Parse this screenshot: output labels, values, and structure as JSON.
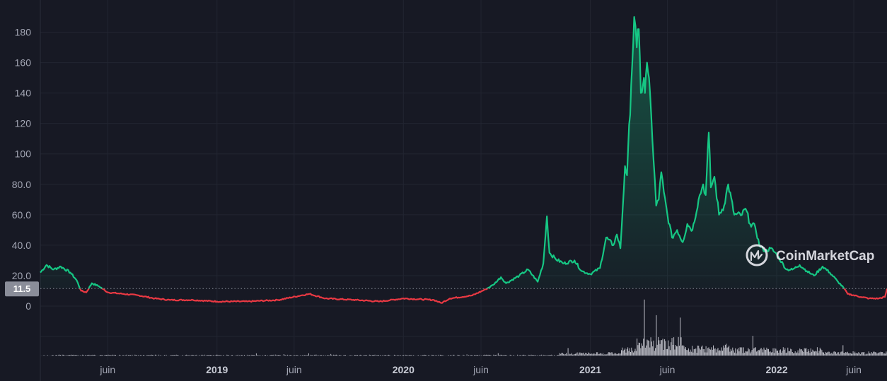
{
  "chart_data": {
    "type": "line",
    "title": "",
    "xlabel": "",
    "ylabel": "",
    "ylim": [
      0,
      190
    ],
    "y_ticks": [
      "180",
      "160",
      "140",
      "120",
      "100",
      "80.0",
      "60.0",
      "40.0",
      "20.0",
      "0"
    ],
    "x_ticks": [
      {
        "label": "juin",
        "date": "2018-06-01",
        "year_marker": false
      },
      {
        "label": "2019",
        "date": "2019-01-01",
        "year_marker": true
      },
      {
        "label": "juin",
        "date": "2019-06-01",
        "year_marker": false
      },
      {
        "label": "2020",
        "date": "2020-01-01",
        "year_marker": true
      },
      {
        "label": "juin",
        "date": "2020-06-01",
        "year_marker": false
      },
      {
        "label": "2021",
        "date": "2021-01-01",
        "year_marker": true
      },
      {
        "label": "juin",
        "date": "2021-06-01",
        "year_marker": false
      },
      {
        "label": "2022",
        "date": "2022-01-01",
        "year_marker": true
      },
      {
        "label": "juin",
        "date": "2022-06-01",
        "year_marker": false
      }
    ],
    "x_range": [
      "2018-01-20",
      "2022-08-05"
    ],
    "grid": true,
    "current_price": {
      "label": "11.5",
      "value": 11.5
    },
    "colors": {
      "up": "#16c784",
      "down": "#ea3943",
      "grid": "#222531",
      "background": "#171924",
      "volume": "#d9dbe3"
    },
    "series": [
      {
        "values": [
          [
            "2018-01-20",
            22
          ],
          [
            "2018-02-01",
            27
          ],
          [
            "2018-02-15",
            24
          ],
          [
            "2018-03-01",
            26
          ],
          [
            "2018-03-20",
            22
          ],
          [
            "2018-04-01",
            17
          ],
          [
            "2018-04-10",
            10
          ],
          [
            "2018-04-20",
            9
          ],
          [
            "2018-05-01",
            15
          ],
          [
            "2018-05-15",
            13
          ],
          [
            "2018-06-01",
            9
          ],
          [
            "2018-07-01",
            8
          ],
          [
            "2018-08-01",
            7
          ],
          [
            "2018-09-01",
            5
          ],
          [
            "2018-10-01",
            4
          ],
          [
            "2018-11-15",
            4
          ],
          [
            "2019-01-01",
            3
          ],
          [
            "2019-03-01",
            3
          ],
          [
            "2019-05-01",
            4
          ],
          [
            "2019-06-15",
            7
          ],
          [
            "2019-07-01",
            8
          ],
          [
            "2019-08-01",
            5
          ],
          [
            "2019-10-01",
            4
          ],
          [
            "2019-11-15",
            3
          ],
          [
            "2020-01-01",
            5
          ],
          [
            "2020-03-01",
            4
          ],
          [
            "2020-03-15",
            2
          ],
          [
            "2020-04-01",
            5
          ],
          [
            "2020-05-15",
            7
          ],
          [
            "2020-06-10",
            11
          ],
          [
            "2020-06-25",
            14
          ],
          [
            "2020-07-10",
            19
          ],
          [
            "2020-07-20",
            15
          ],
          [
            "2020-08-15",
            20
          ],
          [
            "2020-09-01",
            24
          ],
          [
            "2020-09-20",
            16
          ],
          [
            "2020-10-01",
            28
          ],
          [
            "2020-10-08",
            59
          ],
          [
            "2020-10-13",
            35
          ],
          [
            "2020-10-25",
            31
          ],
          [
            "2020-11-10",
            28
          ],
          [
            "2020-12-01",
            30
          ],
          [
            "2020-12-15",
            23
          ],
          [
            "2021-01-01",
            21
          ],
          [
            "2021-01-20",
            25
          ],
          [
            "2021-02-01",
            45
          ],
          [
            "2021-02-15",
            40
          ],
          [
            "2021-02-22",
            47
          ],
          [
            "2021-03-01",
            38
          ],
          [
            "2021-03-10",
            92
          ],
          [
            "2021-03-14",
            86
          ],
          [
            "2021-03-22",
            145
          ],
          [
            "2021-03-28",
            190
          ],
          [
            "2021-04-02",
            170
          ],
          [
            "2021-04-06",
            182
          ],
          [
            "2021-04-10",
            140
          ],
          [
            "2021-04-16",
            150
          ],
          [
            "2021-04-18",
            140
          ],
          [
            "2021-04-22",
            160
          ],
          [
            "2021-04-28",
            140
          ],
          [
            "2021-05-05",
            95
          ],
          [
            "2021-05-10",
            66
          ],
          [
            "2021-05-15",
            70
          ],
          [
            "2021-05-20",
            88
          ],
          [
            "2021-05-25",
            75
          ],
          [
            "2021-06-01",
            60
          ],
          [
            "2021-06-10",
            45
          ],
          [
            "2021-06-20",
            50
          ],
          [
            "2021-07-01",
            42
          ],
          [
            "2021-07-10",
            54
          ],
          [
            "2021-07-20",
            50
          ],
          [
            "2021-08-01",
            70
          ],
          [
            "2021-08-10",
            80
          ],
          [
            "2021-08-15",
            73
          ],
          [
            "2021-08-21",
            114
          ],
          [
            "2021-08-25",
            78
          ],
          [
            "2021-09-01",
            85
          ],
          [
            "2021-09-10",
            60
          ],
          [
            "2021-09-20",
            66
          ],
          [
            "2021-09-28",
            80
          ],
          [
            "2021-10-10",
            60
          ],
          [
            "2021-10-25",
            60
          ],
          [
            "2021-11-01",
            64
          ],
          [
            "2021-11-10",
            54
          ],
          [
            "2021-11-20",
            52
          ],
          [
            "2021-11-28",
            40
          ],
          [
            "2021-12-10",
            36
          ],
          [
            "2021-12-20",
            38
          ],
          [
            "2022-01-01",
            34
          ],
          [
            "2022-01-20",
            24
          ],
          [
            "2022-02-01",
            24
          ],
          [
            "2022-02-15",
            27
          ],
          [
            "2022-03-01",
            23
          ],
          [
            "2022-03-15",
            20
          ],
          [
            "2022-04-01",
            26
          ],
          [
            "2022-04-15",
            22
          ],
          [
            "2022-05-01",
            16
          ],
          [
            "2022-05-12",
            12
          ],
          [
            "2022-05-20",
            8
          ],
          [
            "2022-06-15",
            6
          ],
          [
            "2022-07-01",
            5
          ],
          [
            "2022-07-20",
            5
          ],
          [
            "2022-08-01",
            6
          ],
          [
            "2022-08-05",
            11.5
          ]
        ]
      }
    ]
  },
  "watermark": {
    "text": "CoinMarketCap"
  }
}
